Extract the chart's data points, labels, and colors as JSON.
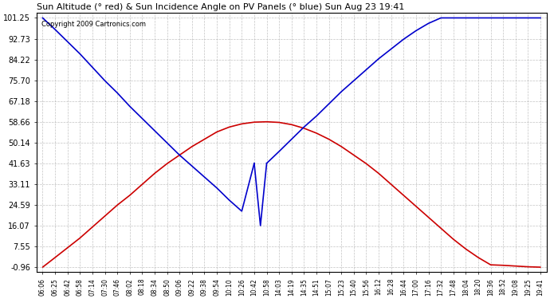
{
  "title": "Sun Altitude (° red) & Sun Incidence Angle on PV Panels (° blue) Sun Aug 23 19:41",
  "copyright": "Copyright 2009 Cartronics.com",
  "background_color": "#ffffff",
  "grid_color": "#aaaaaa",
  "ylim": [
    -0.96,
    101.25
  ],
  "yticks": [
    -0.96,
    7.55,
    16.07,
    24.59,
    33.11,
    41.63,
    50.14,
    58.66,
    67.18,
    75.7,
    84.22,
    92.73,
    101.25
  ],
  "x_labels": [
    "06:06",
    "06:25",
    "06:42",
    "06:58",
    "07:14",
    "07:30",
    "07:46",
    "08:02",
    "08:18",
    "08:34",
    "08:50",
    "09:06",
    "09:22",
    "09:38",
    "09:54",
    "10:10",
    "10:26",
    "10:42",
    "10:58",
    "14:03",
    "14:19",
    "14:35",
    "14:51",
    "15:07",
    "15:23",
    "15:40",
    "15:56",
    "16:12",
    "16:28",
    "16:44",
    "17:00",
    "17:16",
    "17:32",
    "17:48",
    "18:04",
    "18:20",
    "18:36",
    "18:52",
    "19:08",
    "19:25",
    "19:41"
  ],
  "red_line_color": "#cc0000",
  "blue_line_color": "#0000cc",
  "red_data": {
    "x": [
      0,
      1,
      2,
      3,
      4,
      5,
      6,
      7,
      8,
      9,
      10,
      11,
      12,
      13,
      14,
      15,
      16,
      17,
      18,
      19,
      20,
      21,
      22,
      23,
      24,
      25,
      26,
      27,
      28,
      29,
      30,
      31,
      32,
      33,
      34,
      35,
      36,
      37,
      38,
      39,
      40
    ],
    "y": [
      -0.96,
      3.0,
      7.0,
      11.0,
      15.5,
      20.0,
      24.5,
      28.5,
      33.0,
      37.5,
      41.5,
      45.0,
      48.5,
      51.5,
      54.5,
      56.5,
      57.8,
      58.5,
      58.66,
      58.4,
      57.5,
      56.0,
      54.0,
      51.5,
      48.5,
      45.0,
      41.5,
      37.5,
      33.0,
      28.5,
      24.0,
      19.5,
      15.0,
      10.5,
      6.5,
      3.0,
      0.0,
      -0.2,
      -0.5,
      -0.8,
      -0.96
    ]
  },
  "blue_data_segment1": {
    "x": [
      0,
      1,
      2,
      3,
      4,
      5,
      6,
      7,
      8,
      9,
      10,
      11,
      12,
      13,
      14,
      15,
      16,
      17
    ],
    "y": [
      101.25,
      96.5,
      91.5,
      86.5,
      81.0,
      75.5,
      70.5,
      65.0,
      60.0,
      55.0,
      50.0,
      45.0,
      40.5,
      36.0,
      31.5,
      26.5,
      22.0,
      41.63
    ]
  },
  "blue_data_dip": {
    "x": [
      17,
      17.5,
      18
    ],
    "y": [
      41.63,
      16.07,
      41.63
    ]
  },
  "blue_data_segment2": {
    "x": [
      18,
      19,
      20,
      21,
      22,
      23,
      24,
      25,
      26,
      27,
      28,
      29,
      30,
      31,
      32,
      33,
      34,
      35,
      36,
      37,
      38,
      39,
      40
    ],
    "y": [
      41.63,
      46.5,
      51.5,
      56.5,
      61.0,
      66.0,
      71.0,
      75.5,
      80.0,
      84.5,
      88.5,
      92.5,
      96.0,
      99.0,
      101.25,
      101.25,
      101.25,
      101.25,
      101.25,
      101.25,
      101.25,
      101.25,
      101.25
    ]
  }
}
